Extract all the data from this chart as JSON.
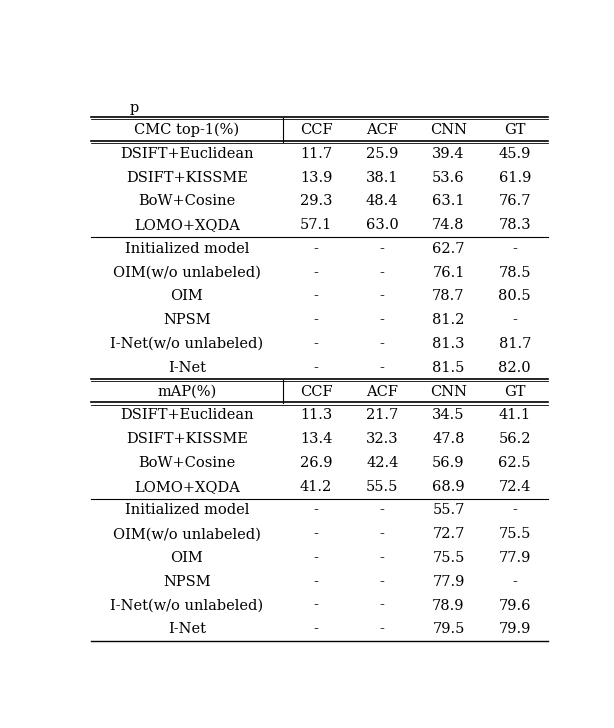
{
  "title": "p",
  "section1_header": [
    "CMC top-1(%)",
    "CCF",
    "ACF",
    "CNN",
    "GT"
  ],
  "section1_rows": [
    [
      "DSIFT+Euclidean",
      "11.7",
      "25.9",
      "39.4",
      "45.9"
    ],
    [
      "DSIFT+KISSME",
      "13.9",
      "38.1",
      "53.6",
      "61.9"
    ],
    [
      "BoW+Cosine",
      "29.3",
      "48.4",
      "63.1",
      "76.7"
    ],
    [
      "LOMO+XQDA",
      "57.1",
      "63.0",
      "74.8",
      "78.3"
    ]
  ],
  "section2_rows": [
    [
      "Initialized model",
      "-",
      "-",
      "62.7",
      "-"
    ],
    [
      "OIM(w/o unlabeled)",
      "-",
      "-",
      "76.1",
      "78.5"
    ],
    [
      "OIM",
      "-",
      "-",
      "78.7",
      "80.5"
    ],
    [
      "NPSM",
      "-",
      "-",
      "81.2",
      "-"
    ],
    [
      "I-Net(w/o unlabeled)",
      "-",
      "-",
      "81.3",
      "81.7"
    ],
    [
      "I-Net",
      "-",
      "-",
      "81.5",
      "82.0"
    ]
  ],
  "section3_header": [
    "mAP(%)",
    "CCF",
    "ACF",
    "CNN",
    "GT"
  ],
  "section3_rows": [
    [
      "DSIFT+Euclidean",
      "11.3",
      "21.7",
      "34.5",
      "41.1"
    ],
    [
      "DSIFT+KISSME",
      "13.4",
      "32.3",
      "47.8",
      "56.2"
    ],
    [
      "BoW+Cosine",
      "26.9",
      "42.4",
      "56.9",
      "62.5"
    ],
    [
      "LOMO+XQDA",
      "41.2",
      "55.5",
      "68.9",
      "72.4"
    ]
  ],
  "section4_rows": [
    [
      "Initialized model",
      "-",
      "-",
      "55.7",
      "-"
    ],
    [
      "OIM(w/o unlabeled)",
      "-",
      "-",
      "72.7",
      "75.5"
    ],
    [
      "OIM",
      "-",
      "-",
      "75.5",
      "77.9"
    ],
    [
      "NPSM",
      "-",
      "-",
      "77.9",
      "-"
    ],
    [
      "I-Net(w/o unlabeled)",
      "-",
      "-",
      "78.9",
      "79.6"
    ],
    [
      "I-Net",
      "-",
      "-",
      "79.5",
      "79.9"
    ]
  ],
  "bg_color": "#ffffff",
  "text_color": "#000000",
  "fontsize": 10.5
}
